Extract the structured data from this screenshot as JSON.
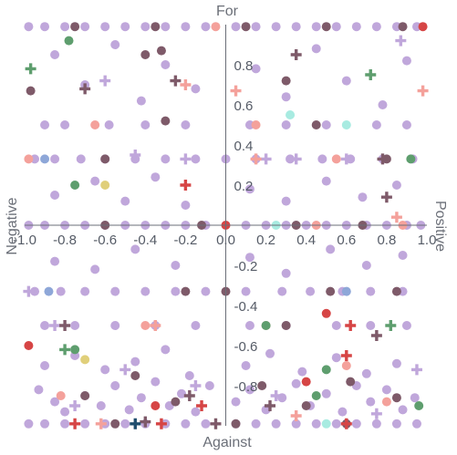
{
  "chart_data": {
    "type": "scatter",
    "quadrant_labels": {
      "top": "For",
      "bottom": "Against",
      "left": "Negative",
      "right": "Positive"
    },
    "xlim": [
      -1.0,
      1.0
    ],
    "ylim": [
      -1.0,
      1.0
    ],
    "x_ticks": [
      "-1.0",
      "-0.8",
      "-0.6",
      "-0.4",
      "-0.2",
      "0.0",
      "0.2",
      "0.4",
      "0.6",
      "0.8",
      "1.0"
    ],
    "x_tick_values": [
      -1.0,
      -0.8,
      -0.6,
      -0.4,
      -0.2,
      0.0,
      0.2,
      0.4,
      0.6,
      0.8,
      1.0
    ],
    "y_ticks": [
      "0.8",
      "0.6",
      "0.4",
      "0.2",
      "-0.2",
      "-0.4",
      "-0.6",
      "-0.8"
    ],
    "y_tick_values": [
      0.8,
      0.6,
      0.4,
      0.2,
      -0.2,
      -0.4,
      -0.6,
      -0.8
    ],
    "grid": false,
    "colors": {
      "lavender": "#c0a7db",
      "mauve": "#7e5a69",
      "salmon": "#f4a19b",
      "red": "#d64545",
      "green": "#5e9e6e",
      "mint": "#a8ebe1",
      "yellow": "#e0cf7a",
      "blue": "#8ea7d8",
      "navy": "#1f4e6e"
    },
    "series": [
      {
        "color": "lavender",
        "marker": "circle",
        "points": [
          [
            -0.98,
            0.99
          ],
          [
            -0.9,
            0.99
          ],
          [
            -0.8,
            0.99
          ],
          [
            -0.7,
            0.99
          ],
          [
            -0.6,
            0.99
          ],
          [
            -0.5,
            0.99
          ],
          [
            -0.4,
            0.99
          ],
          [
            -0.3,
            0.99
          ],
          [
            -0.2,
            0.99
          ],
          [
            -0.1,
            0.99
          ],
          [
            0.05,
            0.99
          ],
          [
            0.15,
            0.99
          ],
          [
            0.25,
            0.99
          ],
          [
            0.35,
            0.99
          ],
          [
            0.45,
            0.99
          ],
          [
            0.55,
            0.99
          ],
          [
            0.65,
            0.99
          ],
          [
            0.75,
            0.99
          ],
          [
            0.85,
            0.99
          ],
          [
            0.95,
            0.99
          ],
          [
            -0.98,
            0.0
          ],
          [
            -0.9,
            0.0
          ],
          [
            -0.8,
            0.0
          ],
          [
            -0.7,
            0.0
          ],
          [
            -0.6,
            0.0
          ],
          [
            -0.5,
            0.0
          ],
          [
            -0.4,
            0.0
          ],
          [
            -0.3,
            0.0
          ],
          [
            -0.2,
            0.0
          ],
          [
            -0.1,
            0.0
          ],
          [
            0.1,
            0.0
          ],
          [
            0.2,
            0.0
          ],
          [
            0.3,
            0.0
          ],
          [
            0.4,
            0.0
          ],
          [
            0.5,
            0.0
          ],
          [
            0.6,
            0.0
          ],
          [
            0.7,
            0.0
          ],
          [
            0.8,
            0.0
          ],
          [
            0.9,
            0.0
          ],
          [
            0.97,
            0.0
          ],
          [
            -0.98,
            -0.99
          ],
          [
            -0.9,
            -0.99
          ],
          [
            -0.8,
            -0.99
          ],
          [
            -0.7,
            -0.99
          ],
          [
            -0.6,
            -0.99
          ],
          [
            -0.5,
            -0.99
          ],
          [
            -0.4,
            -0.99
          ],
          [
            -0.3,
            -0.99
          ],
          [
            -0.2,
            -0.99
          ],
          [
            -0.1,
            -0.99
          ],
          [
            0.05,
            -0.99
          ],
          [
            0.15,
            -0.99
          ],
          [
            0.25,
            -0.99
          ],
          [
            0.35,
            -0.99
          ],
          [
            0.45,
            -0.99
          ],
          [
            0.55,
            -0.99
          ],
          [
            0.65,
            -0.99
          ],
          [
            0.75,
            -0.99
          ],
          [
            0.85,
            -0.99
          ],
          [
            0.95,
            -0.99
          ],
          [
            -0.95,
            0.33
          ],
          [
            -0.85,
            0.33
          ],
          [
            -0.72,
            0.33
          ],
          [
            -0.6,
            0.33
          ],
          [
            -0.45,
            0.33
          ],
          [
            -0.3,
            0.33
          ],
          [
            -0.15,
            0.33
          ],
          [
            0.0,
            0.33
          ],
          [
            0.15,
            0.33
          ],
          [
            0.32,
            0.33
          ],
          [
            0.48,
            0.33
          ],
          [
            0.62,
            0.33
          ],
          [
            0.78,
            0.33
          ],
          [
            0.93,
            0.33
          ],
          [
            -0.95,
            -0.33
          ],
          [
            -0.82,
            -0.33
          ],
          [
            -0.7,
            -0.33
          ],
          [
            -0.55,
            -0.33
          ],
          [
            -0.4,
            -0.33
          ],
          [
            -0.25,
            -0.33
          ],
          [
            -0.1,
            -0.33
          ],
          [
            0.1,
            -0.33
          ],
          [
            0.28,
            -0.33
          ],
          [
            0.42,
            -0.33
          ],
          [
            0.58,
            -0.33
          ],
          [
            0.72,
            -0.33
          ],
          [
            0.88,
            -0.33
          ],
          [
            -0.9,
            0.5
          ],
          [
            -0.8,
            0.5
          ],
          [
            -0.58,
            0.5
          ],
          [
            -0.4,
            0.5
          ],
          [
            -0.2,
            0.5
          ],
          [
            0.12,
            0.5
          ],
          [
            0.3,
            0.5
          ],
          [
            0.5,
            0.5
          ],
          [
            0.75,
            0.5
          ],
          [
            0.9,
            0.5
          ],
          [
            -0.9,
            -0.5
          ],
          [
            -0.75,
            -0.5
          ],
          [
            -0.55,
            -0.5
          ],
          [
            -0.35,
            -0.5
          ],
          [
            -0.15,
            -0.5
          ],
          [
            0.12,
            -0.5
          ],
          [
            0.3,
            -0.5
          ],
          [
            0.55,
            -0.5
          ],
          [
            0.72,
            -0.5
          ],
          [
            0.9,
            -0.5
          ],
          [
            -0.93,
            -0.82
          ],
          [
            -0.85,
            -0.88
          ],
          [
            -0.8,
            -0.93
          ],
          [
            -0.7,
            -0.85
          ],
          [
            -0.62,
            -0.9
          ],
          [
            -0.55,
            -0.8
          ],
          [
            -0.48,
            -0.92
          ],
          [
            -0.42,
            -0.86
          ],
          [
            -0.35,
            -0.78
          ],
          [
            -0.28,
            -0.9
          ],
          [
            -0.22,
            -0.84
          ],
          [
            -0.15,
            -0.93
          ],
          [
            -0.08,
            -0.8
          ],
          [
            0.05,
            -0.88
          ],
          [
            0.12,
            -0.82
          ],
          [
            0.2,
            -0.92
          ],
          [
            0.28,
            -0.86
          ],
          [
            0.35,
            -0.79
          ],
          [
            0.42,
            -0.9
          ],
          [
            0.5,
            -0.84
          ],
          [
            0.58,
            -0.93
          ],
          [
            0.65,
            -0.8
          ],
          [
            0.72,
            -0.88
          ],
          [
            0.8,
            -0.82
          ],
          [
            0.88,
            -0.92
          ],
          [
            0.94,
            -0.86
          ],
          [
            -0.9,
            -0.7
          ],
          [
            -0.75,
            -0.65
          ],
          [
            -0.6,
            -0.72
          ],
          [
            -0.45,
            -0.68
          ],
          [
            -0.3,
            -0.62
          ],
          [
            -0.18,
            -0.75
          ],
          [
            0.1,
            -0.7
          ],
          [
            0.22,
            -0.64
          ],
          [
            0.38,
            -0.73
          ],
          [
            0.55,
            -0.66
          ],
          [
            0.7,
            -0.74
          ],
          [
            0.85,
            -0.69
          ],
          [
            -0.85,
            0.85
          ],
          [
            -0.7,
            0.7
          ],
          [
            -0.55,
            0.9
          ],
          [
            -0.42,
            0.62
          ],
          [
            -0.3,
            0.8
          ],
          [
            -0.15,
            0.68
          ],
          [
            0.15,
            0.78
          ],
          [
            0.3,
            0.64
          ],
          [
            0.45,
            0.88
          ],
          [
            0.6,
            0.72
          ],
          [
            0.78,
            0.6
          ],
          [
            0.9,
            0.82
          ],
          [
            -0.85,
            0.15
          ],
          [
            -0.65,
            0.22
          ],
          [
            -0.5,
            0.12
          ],
          [
            -0.35,
            0.24
          ],
          [
            -0.2,
            0.1
          ],
          [
            0.12,
            0.18
          ],
          [
            0.3,
            0.12
          ],
          [
            0.5,
            0.22
          ],
          [
            0.68,
            0.14
          ],
          [
            0.85,
            0.2
          ],
          [
            -0.85,
            -0.18
          ],
          [
            -0.65,
            -0.22
          ],
          [
            -0.45,
            -0.12
          ],
          [
            -0.25,
            -0.2
          ],
          [
            0.12,
            -0.16
          ],
          [
            0.3,
            -0.24
          ],
          [
            0.52,
            -0.12
          ],
          [
            0.7,
            -0.2
          ],
          [
            0.88,
            -0.15
          ]
        ]
      },
      {
        "color": "mauve",
        "marker": "circle",
        "points": [
          [
            -0.75,
            0.99
          ],
          [
            -0.35,
            0.99
          ],
          [
            0.1,
            0.99
          ],
          [
            0.5,
            0.99
          ],
          [
            0.88,
            0.99
          ],
          [
            -0.6,
            0.0
          ],
          [
            -0.12,
            0.0
          ],
          [
            0.35,
            0.0
          ],
          [
            0.68,
            0.0
          ],
          [
            -0.55,
            -0.99
          ],
          [
            0.05,
            -0.99
          ],
          [
            0.6,
            -0.99
          ],
          [
            -0.97,
            0.67
          ],
          [
            -0.4,
            0.85
          ],
          [
            -0.32,
            0.87
          ],
          [
            0.3,
            0.72
          ],
          [
            0.45,
            0.5
          ],
          [
            -0.3,
            0.52
          ],
          [
            -0.6,
            0.33
          ],
          [
            0.8,
            0.33
          ],
          [
            -0.2,
            -0.33
          ],
          [
            0.0,
            -0.33
          ],
          [
            0.52,
            -0.33
          ],
          [
            0.85,
            -0.33
          ],
          [
            -0.7,
            -0.85
          ],
          [
            -0.45,
            -0.75
          ],
          [
            -0.25,
            -0.88
          ],
          [
            0.18,
            -0.8
          ],
          [
            0.4,
            -0.9
          ],
          [
            0.62,
            -0.78
          ],
          [
            0.85,
            -0.86
          ],
          [
            0.3,
            -0.5
          ]
        ]
      },
      {
        "color": "salmon",
        "marker": "circle",
        "points": [
          [
            -0.98,
            0.33
          ],
          [
            -0.65,
            0.5
          ],
          [
            -0.05,
            0.99
          ],
          [
            0.15,
            0.5
          ],
          [
            0.45,
            0.0
          ],
          [
            0.88,
            0.0
          ],
          [
            -0.4,
            -0.5
          ],
          [
            0.2,
            -0.5
          ],
          [
            0.6,
            -0.7
          ],
          [
            0.8,
            -0.88
          ],
          [
            0.55,
            0.33
          ],
          [
            -0.82,
            -0.85
          ]
        ]
      },
      {
        "color": "red",
        "marker": "circle",
        "points": [
          [
            0.98,
            0.99
          ],
          [
            -0.98,
            -0.6
          ],
          [
            0.5,
            -0.44
          ],
          [
            0.4,
            -0.78
          ],
          [
            -0.35,
            -0.9
          ],
          [
            0.0,
            0.0
          ]
        ]
      },
      {
        "color": "green",
        "marker": "circle",
        "points": [
          [
            -0.78,
            0.92
          ],
          [
            -0.75,
            0.2
          ],
          [
            0.2,
            -0.5
          ],
          [
            0.92,
            0.33
          ],
          [
            0.5,
            -0.72
          ],
          [
            0.45,
            -0.85
          ],
          [
            0.96,
            -0.9
          ],
          [
            -0.75,
            -0.62
          ]
        ]
      },
      {
        "color": "mint",
        "marker": "circle",
        "points": [
          [
            0.6,
            0.5
          ],
          [
            0.32,
            0.55
          ],
          [
            0.25,
            0.0
          ],
          [
            0.5,
            -0.99
          ]
        ]
      },
      {
        "color": "yellow",
        "marker": "circle",
        "points": [
          [
            -0.6,
            0.2
          ],
          [
            -0.7,
            -0.67
          ]
        ]
      },
      {
        "color": "blue",
        "marker": "circle",
        "points": [
          [
            -0.88,
            -0.33
          ],
          [
            0.6,
            -0.33
          ],
          [
            -0.9,
            0.33
          ]
        ]
      },
      {
        "color": "lavender",
        "marker": "plus",
        "points": [
          [
            0.87,
            0.92
          ],
          [
            -0.6,
            0.72
          ],
          [
            -0.2,
            0.33
          ],
          [
            0.35,
            0.33
          ],
          [
            -0.98,
            -0.33
          ],
          [
            -0.45,
            0.35
          ],
          [
            0.95,
            -0.72
          ],
          [
            -0.75,
            -0.9
          ],
          [
            0.25,
            -0.85
          ],
          [
            -0.15,
            -0.8
          ],
          [
            0.75,
            -0.94
          ],
          [
            -0.5,
            -0.72
          ],
          [
            0.6,
            0.33
          ],
          [
            0.2,
            0.33
          ],
          [
            -0.85,
            -0.5
          ]
        ]
      },
      {
        "color": "mauve",
        "marker": "plus",
        "points": [
          [
            -0.7,
            0.68
          ],
          [
            -0.25,
            0.72
          ],
          [
            0.35,
            0.85
          ],
          [
            0.78,
            0.33
          ],
          [
            0.8,
            0.14
          ],
          [
            -0.8,
            -0.5
          ],
          [
            -0.4,
            -0.98
          ],
          [
            0.22,
            -0.9
          ],
          [
            -0.18,
            -0.85
          ],
          [
            0.75,
            -0.55
          ],
          [
            -0.05,
            -0.99
          ]
        ]
      },
      {
        "color": "salmon",
        "marker": "plus",
        "points": [
          [
            0.05,
            0.67
          ],
          [
            0.98,
            0.67
          ],
          [
            0.85,
            0.04
          ],
          [
            -0.2,
            0.7
          ],
          [
            -0.35,
            -0.5
          ],
          [
            0.35,
            -0.95
          ],
          [
            0.15,
            0.33
          ],
          [
            -0.62,
            -0.99
          ]
        ]
      },
      {
        "color": "red",
        "marker": "plus",
        "points": [
          [
            -0.2,
            0.2
          ],
          [
            0.62,
            -0.5
          ],
          [
            0.6,
            -0.65
          ],
          [
            -0.12,
            -0.9
          ],
          [
            -0.32,
            -0.99
          ],
          [
            0.6,
            -0.99
          ],
          [
            -0.75,
            -0.99
          ]
        ]
      },
      {
        "color": "green",
        "marker": "plus",
        "points": [
          [
            -0.97,
            0.78
          ],
          [
            0.72,
            0.75
          ],
          [
            0.82,
            -0.5
          ],
          [
            -0.8,
            -0.62
          ]
        ]
      },
      {
        "color": "navy",
        "marker": "plus",
        "points": [
          [
            -0.45,
            -0.99
          ]
        ]
      }
    ]
  }
}
